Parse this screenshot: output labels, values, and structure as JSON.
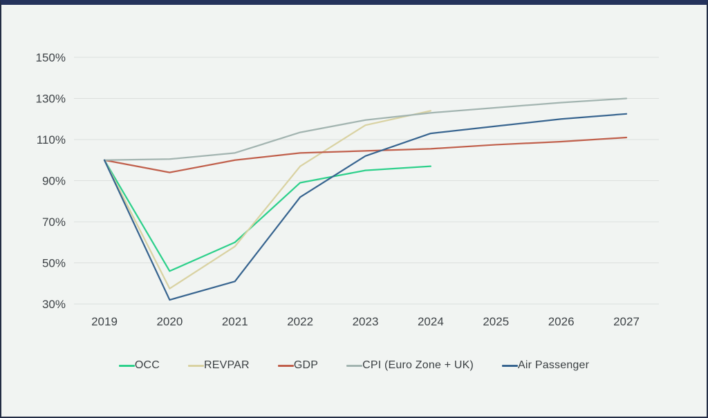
{
  "chart_data": {
    "type": "line",
    "x": [
      2019,
      2020,
      2021,
      2022,
      2023,
      2024,
      2025,
      2026,
      2027
    ],
    "series": [
      {
        "name": "OCC",
        "color": "#2dd08b",
        "values": [
          100,
          46,
          60,
          89,
          95,
          97,
          null,
          null,
          null
        ]
      },
      {
        "name": "REVPAR",
        "color": "#d9d2a2",
        "values": [
          100,
          37.5,
          58,
          97,
          117,
          124,
          null,
          null,
          null
        ]
      },
      {
        "name": "GDP",
        "color": "#c05f4b",
        "values": [
          100,
          94,
          100,
          103.5,
          104.5,
          105.5,
          107.5,
          109,
          111
        ]
      },
      {
        "name": "CPI (Euro Zone + UK)",
        "color": "#a2b4b0",
        "values": [
          100,
          100.5,
          103.5,
          113.5,
          119.5,
          123,
          125.5,
          128,
          130
        ]
      },
      {
        "name": "Air Passenger",
        "color": "#37648f",
        "values": [
          100,
          32,
          41,
          82,
          102,
          113,
          116.5,
          120,
          122.5
        ]
      }
    ],
    "y_ticks": [
      {
        "label": "150%",
        "value": 150
      },
      {
        "label": "130%",
        "value": 130
      },
      {
        "label": "110%",
        "value": 110
      },
      {
        "label": "90%",
        "value": 90
      },
      {
        "label": "70%",
        "value": 70
      },
      {
        "label": "50%",
        "value": 50
      },
      {
        "label": "30%",
        "value": 30
      }
    ],
    "ylim": [
      30,
      150
    ],
    "y_format": "percent",
    "grid": true,
    "legend_position": "bottom",
    "title": "",
    "xlabel": "",
    "ylabel": ""
  },
  "colors": {
    "background": "#f1f4f2",
    "top_bar": "#25335c",
    "frame_border": "#232d44",
    "gridline": "#dcdfdd",
    "tick_text": "#3e4347",
    "legend_text": "#3a3f42"
  }
}
